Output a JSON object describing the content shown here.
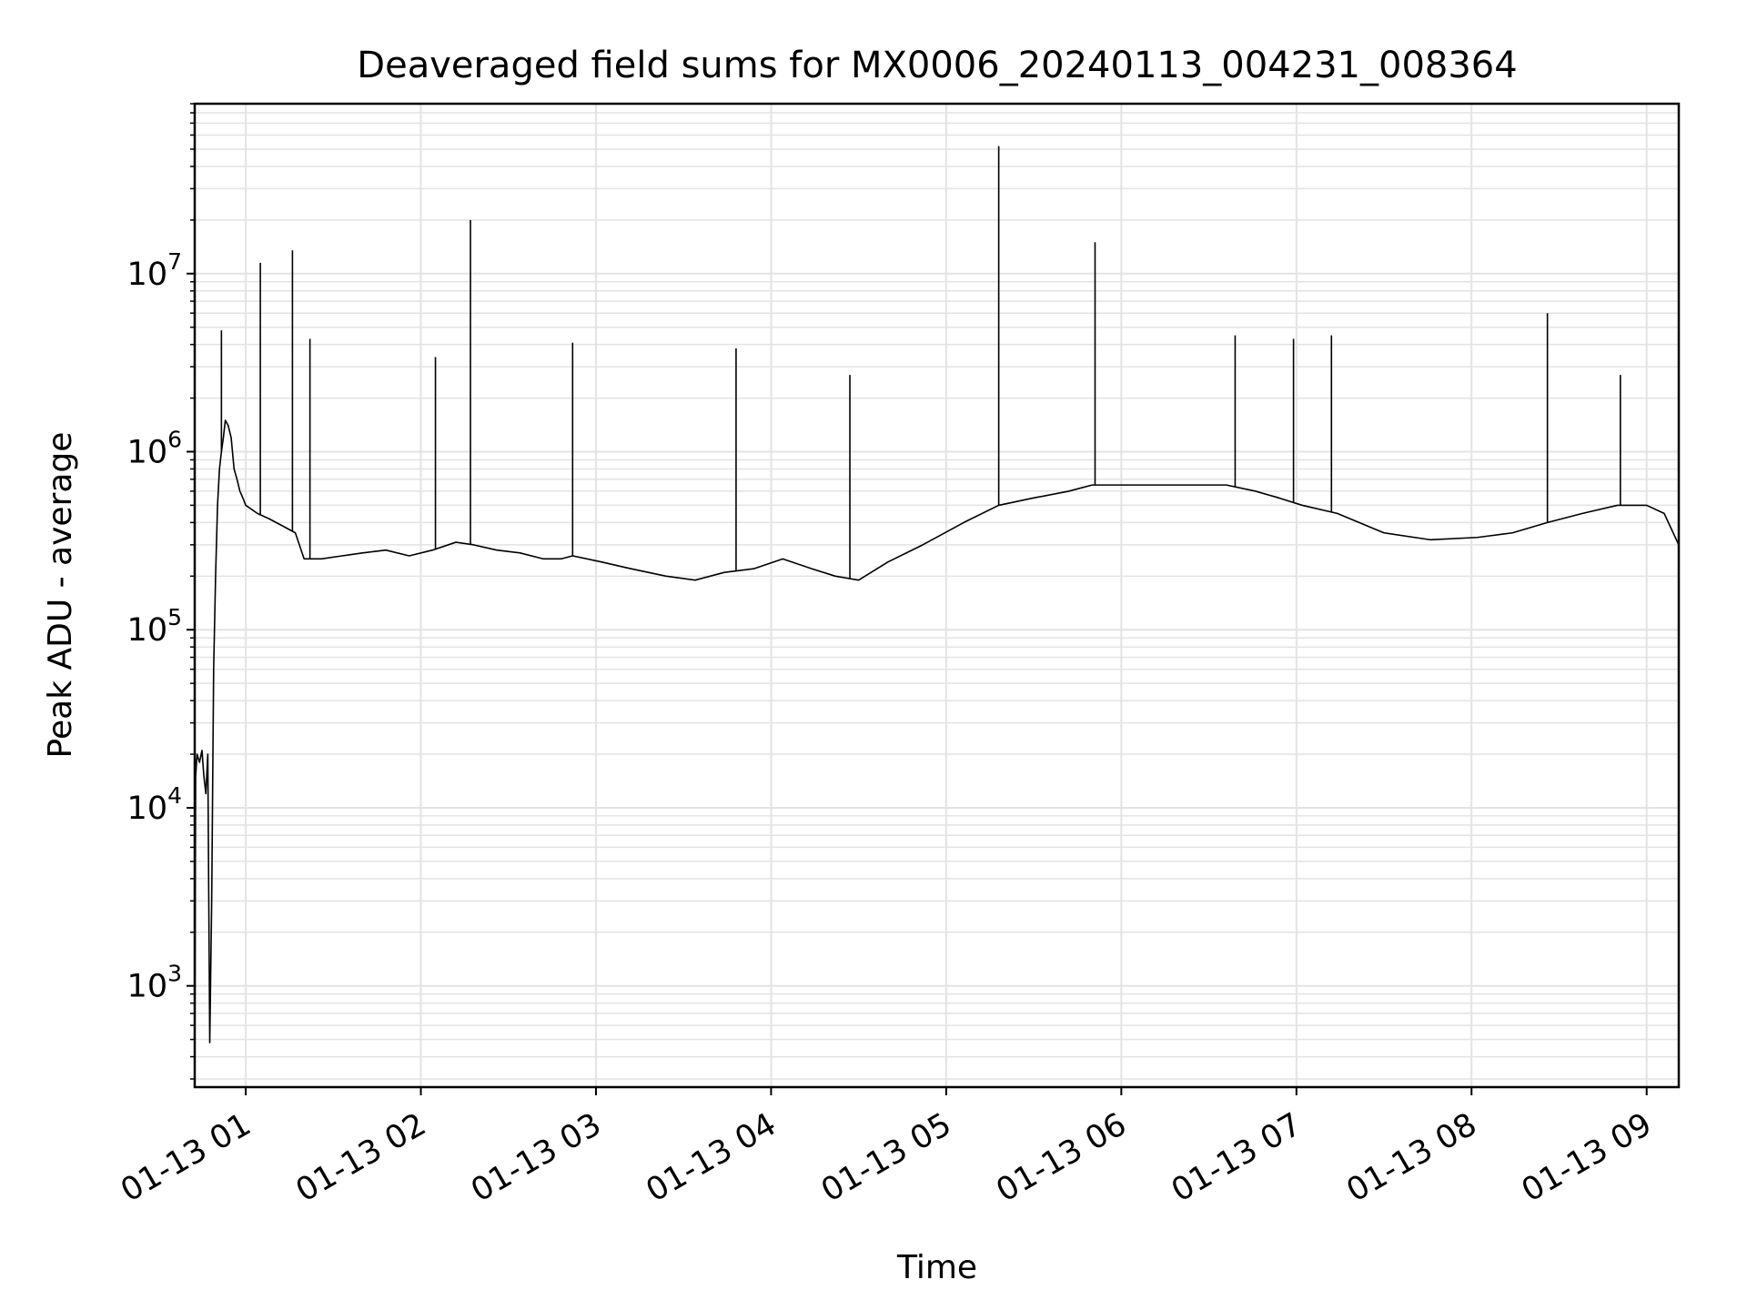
{
  "chart_data": {
    "type": "line",
    "title": "Deaveraged field sums for MX0006_20240113_004231_008364",
    "xlabel": "Time",
    "ylabel": "Peak ADU - average",
    "y_scale": "log",
    "ylim": [
      270,
      90000000
    ],
    "xlim": [
      "2024-01-13 00:42:31",
      "2024-01-13 09:11:00"
    ],
    "x_ticks": [
      "01-13 01",
      "01-13 02",
      "01-13 03",
      "01-13 04",
      "01-13 05",
      "01-13 06",
      "01-13 07",
      "01-13 08",
      "01-13 09"
    ],
    "y_ticks": [
      {
        "base": "10",
        "exp": "3"
      },
      {
        "base": "10",
        "exp": "4"
      },
      {
        "base": "10",
        "exp": "5"
      },
      {
        "base": "10",
        "exp": "6"
      },
      {
        "base": "10",
        "exp": "7"
      }
    ],
    "grid": true,
    "line_color": "#000000",
    "grid_color": "#e3e3e3",
    "series": [
      {
        "x": [
          "2024-01-13 00:42:31",
          "2024-01-13 00:42:50",
          "2024-01-13 00:43:20",
          "2024-01-13 00:44:10",
          "2024-01-13 00:45:00",
          "2024-01-13 00:45:40",
          "2024-01-13 00:46:20",
          "2024-01-13 00:47:00",
          "2024-01-13 00:47:40",
          "2024-01-13 00:48:20",
          "2024-01-13 00:49:00",
          "2024-01-13 00:49:40",
          "2024-01-13 00:50:20",
          "2024-01-13 00:51:00",
          "2024-01-13 00:51:40",
          "2024-01-13 00:52:20",
          "2024-01-13 00:53:00",
          "2024-01-13 00:54:00",
          "2024-01-13 00:55:00",
          "2024-01-13 00:56:00",
          "2024-01-13 00:57:00",
          "2024-01-13 00:58:00",
          "2024-01-13 00:59:00",
          "2024-01-13 01:00:00",
          "2024-01-13 01:04:00",
          "2024-01-13 01:08:00",
          "2024-01-13 01:13:00",
          "2024-01-13 01:17:00",
          "2024-01-13 01:20:00",
          "2024-01-13 01:26:00",
          "2024-01-13 01:33:00",
          "2024-01-13 01:40:00",
          "2024-01-13 01:48:00",
          "2024-01-13 01:56:00",
          "2024-01-13 02:04:00",
          "2024-01-13 02:12:00",
          "2024-01-13 02:18:00",
          "2024-01-13 02:26:00",
          "2024-01-13 02:34:00",
          "2024-01-13 02:42:00",
          "2024-01-13 02:48:00",
          "2024-01-13 02:52:00",
          "2024-01-13 03:02:00",
          "2024-01-13 03:12:00",
          "2024-01-13 03:24:00",
          "2024-01-13 03:34:00",
          "2024-01-13 03:44:00",
          "2024-01-13 03:54:00",
          "2024-01-13 04:04:00",
          "2024-01-13 04:14:00",
          "2024-01-13 04:22:00",
          "2024-01-13 04:30:00",
          "2024-01-13 04:40:00",
          "2024-01-13 04:52:00",
          "2024-01-13 05:06:00",
          "2024-01-13 05:18:00",
          "2024-01-13 05:30:00",
          "2024-01-13 05:42:00",
          "2024-01-13 05:50:00",
          "2024-01-13 06:04:00",
          "2024-01-13 06:20:00",
          "2024-01-13 06:36:00",
          "2024-01-13 06:46:00",
          "2024-01-13 06:54:00",
          "2024-01-13 07:02:00",
          "2024-01-13 07:14:00",
          "2024-01-13 07:30:00",
          "2024-01-13 07:46:00",
          "2024-01-13 08:02:00",
          "2024-01-13 08:14:00",
          "2024-01-13 08:26:00",
          "2024-01-13 08:38:00",
          "2024-01-13 08:50:00",
          "2024-01-13 09:00:00",
          "2024-01-13 09:06:00",
          "2024-01-13 09:11:00"
        ],
        "y": [
          270,
          15000,
          20000,
          18000,
          21000,
          15000,
          12000,
          20000,
          480,
          3000,
          60000,
          200000,
          500000,
          800000,
          1000000,
          1200000,
          1500000,
          1400000,
          1200000,
          800000,
          700000,
          600000,
          550000,
          500000,
          450000,
          420000,
          380000,
          350000,
          250000,
          250000,
          260000,
          270000,
          280000,
          260000,
          280000,
          310000,
          300000,
          280000,
          270000,
          250000,
          250000,
          260000,
          240000,
          220000,
          200000,
          190000,
          210000,
          220000,
          250000,
          220000,
          200000,
          190000,
          240000,
          300000,
          400000,
          500000,
          550000,
          600000,
          650000,
          650000,
          650000,
          650000,
          600000,
          550000,
          500000,
          450000,
          350000,
          320000,
          330000,
          350000,
          400000,
          450000,
          500000,
          500000,
          450000,
          300000
        ]
      }
    ],
    "spikes": [
      {
        "x": "2024-01-13 00:51:40",
        "y": 4800000
      },
      {
        "x": "2024-01-13 01:05:00",
        "y": 11500000
      },
      {
        "x": "2024-01-13 01:16:00",
        "y": 13500000
      },
      {
        "x": "2024-01-13 01:22:00",
        "y": 4300000
      },
      {
        "x": "2024-01-13 02:05:00",
        "y": 3400000
      },
      {
        "x": "2024-01-13 02:17:00",
        "y": 20000000
      },
      {
        "x": "2024-01-13 02:52:00",
        "y": 4100000
      },
      {
        "x": "2024-01-13 03:48:00",
        "y": 3800000
      },
      {
        "x": "2024-01-13 04:27:00",
        "y": 2700000
      },
      {
        "x": "2024-01-13 05:18:00",
        "y": 52000000
      },
      {
        "x": "2024-01-13 05:51:00",
        "y": 15000000
      },
      {
        "x": "2024-01-13 06:39:00",
        "y": 4500000
      },
      {
        "x": "2024-01-13 06:59:00",
        "y": 4300000
      },
      {
        "x": "2024-01-13 07:12:00",
        "y": 4500000
      },
      {
        "x": "2024-01-13 08:26:00",
        "y": 6000000
      },
      {
        "x": "2024-01-13 08:51:00",
        "y": 2700000
      }
    ]
  }
}
